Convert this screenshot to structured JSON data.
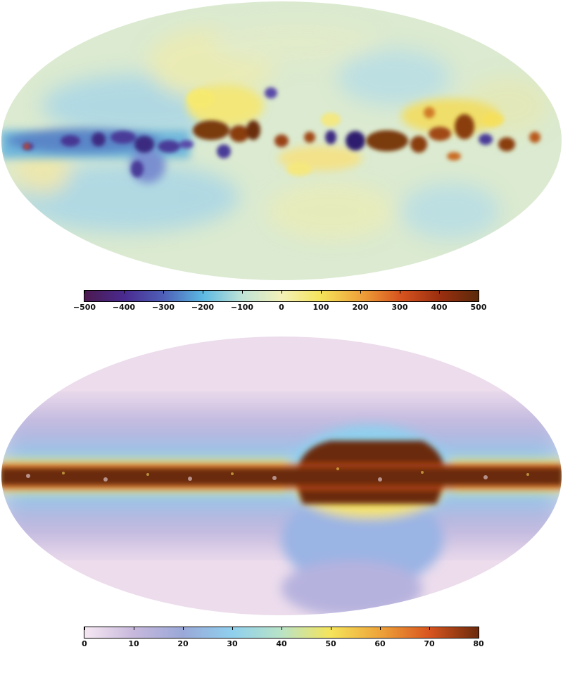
{
  "maps": [
    {
      "id": "top",
      "colorbar": {
        "ticks": [
          "−500",
          "−400",
          "−300",
          "−200",
          "−100",
          "0",
          "100",
          "200",
          "300",
          "400",
          "500"
        ],
        "range": [
          -500,
          500
        ],
        "colors": [
          "#4b1a4f",
          "#4a2a8f",
          "#4e5fb8",
          "#5bb8e2",
          "#bfe3d6",
          "#f3f1b8",
          "#f5e35a",
          "#eea33a",
          "#d8551f",
          "#9c2f10",
          "#5a2a0a"
        ]
      }
    },
    {
      "id": "bottom",
      "colorbar": {
        "ticks": [
          "0",
          "10",
          "20",
          "30",
          "40",
          "50",
          "60",
          "70",
          "80"
        ],
        "range": [
          0,
          80
        ],
        "colors": [
          "#f6e8f2",
          "#c7b8dc",
          "#9aa8d8",
          "#8fd0ee",
          "#b9e3c6",
          "#f5e45a",
          "#eea33a",
          "#d8551f",
          "#6b2a0c"
        ]
      }
    }
  ]
}
